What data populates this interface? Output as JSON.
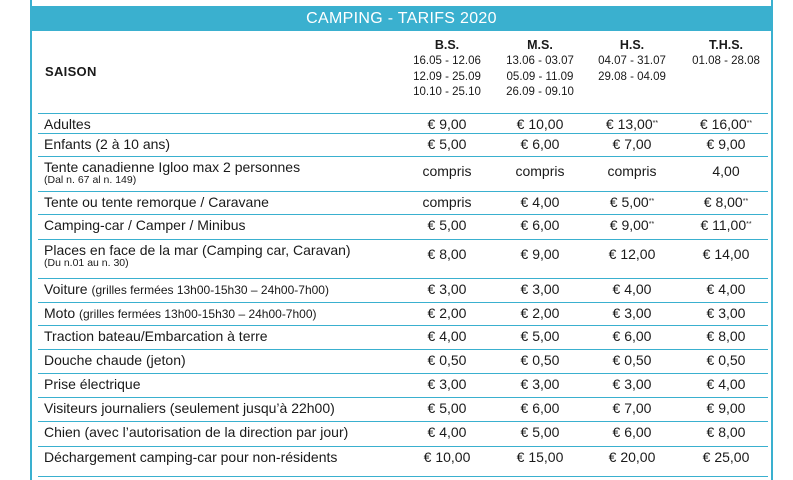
{
  "title": "CAMPING - TARIFS 2020",
  "saison_label": "SAISON",
  "seasons": [
    {
      "code": "B.S.",
      "dates": [
        "16.05 - 12.06",
        "12.09 - 25.09",
        "10.10 - 25.10"
      ]
    },
    {
      "code": "M.S.",
      "dates": [
        "13.06 - 03.07",
        "05.09 - 11.09",
        "26.09 - 09.10"
      ]
    },
    {
      "code": "H.S.",
      "dates": [
        "04.07 - 31.07",
        "29.08 - 04.09"
      ]
    },
    {
      "code": "T.H.S.",
      "dates": [
        "01.08 - 28.08"
      ]
    }
  ],
  "rows": [
    {
      "label": "Adultes",
      "values": [
        "€ 9,00",
        "€ 10,00",
        "€ 13,00",
        "€ 16,00"
      ],
      "marks": [
        "",
        "",
        "**",
        "**"
      ]
    },
    {
      "label": "Enfants (2 à 10 ans)",
      "values": [
        "€ 5,00",
        "€ 6,00",
        "€ 7,00",
        "€ 9,00"
      ],
      "marks": [
        "",
        "",
        "",
        ""
      ]
    },
    {
      "label": "Tente canadienne Igloo max 2 personnes",
      "sub": "(Dal n. 67 al n. 149)",
      "values": [
        "compris",
        "compris",
        "compris",
        "4,00"
      ],
      "marks": [
        "",
        "",
        "",
        ""
      ]
    },
    {
      "label": "Tente ou tente remorque / Caravane",
      "values": [
        "compris",
        "€ 4,00",
        "€ 5,00",
        "€ 8,00"
      ],
      "marks": [
        "",
        "",
        "**",
        "**"
      ]
    },
    {
      "label": "Camping-car / Camper / Minibus",
      "values": [
        "€ 5,00",
        "€ 6,00",
        "€ 9,00",
        "€ 11,00"
      ],
      "marks": [
        "",
        "",
        "**",
        "**"
      ]
    },
    {
      "label": "Places en face de la mar (Camping car, Caravan)",
      "sub": "(Du n.01 au n. 30)",
      "values": [
        "€ 8,00",
        "€ 9,00",
        "€ 12,00",
        "€ 14,00"
      ],
      "marks": [
        "",
        "",
        "",
        ""
      ]
    },
    {
      "label": "Voiture",
      "paren": "(grilles fermées 13h00-15h30 – 24h00-7h00)",
      "values": [
        "€ 3,00",
        "€ 3,00",
        "€ 4,00",
        "€ 4,00"
      ],
      "marks": [
        "",
        "",
        "",
        ""
      ]
    },
    {
      "label": "Moto",
      "paren": "(grilles fermées 13h00-15h30 – 24h00-7h00)",
      "values": [
        "€ 2,00",
        "€ 2,00",
        "€ 3,00",
        "€ 3,00"
      ],
      "marks": [
        "",
        "",
        "",
        ""
      ]
    },
    {
      "label": "Traction bateau/Embarcation à terre",
      "values": [
        "€ 4,00",
        "€ 5,00",
        "€ 6,00",
        "€ 8,00"
      ],
      "marks": [
        "",
        "",
        "",
        ""
      ]
    },
    {
      "label": "Douche chaude (jeton)",
      "values": [
        "€ 0,50",
        "€ 0,50",
        "€ 0,50",
        "€ 0,50"
      ],
      "marks": [
        "",
        "",
        "",
        ""
      ]
    },
    {
      "label": "Prise électrique",
      "values": [
        "€ 3,00",
        "€ 3,00",
        "€ 3,00",
        "€ 4,00"
      ],
      "marks": [
        "",
        "",
        "",
        ""
      ]
    },
    {
      "label": "Visiteurs journaliers (seulement jusqu’à 22h00)",
      "values": [
        "€ 5,00",
        "€ 6,00",
        "€ 7,00",
        "€ 9,00"
      ],
      "marks": [
        "",
        "",
        "",
        ""
      ]
    },
    {
      "label": "Chien (avec l’autorisation de la direction par jour)",
      "values": [
        "€ 4,00",
        "€ 5,00",
        "€ 6,00",
        "€ 8,00"
      ],
      "marks": [
        "",
        "",
        "",
        ""
      ]
    },
    {
      "label": "Déchargement camping-car pour non-résidents",
      "values": [
        "€ 10,00",
        "€ 15,00",
        "€ 20,00",
        "€ 25,00"
      ],
      "marks": [
        "",
        "",
        "",
        ""
      ]
    }
  ],
  "colors": {
    "accent": "#3ab0cf",
    "text": "#1a1a1a"
  }
}
